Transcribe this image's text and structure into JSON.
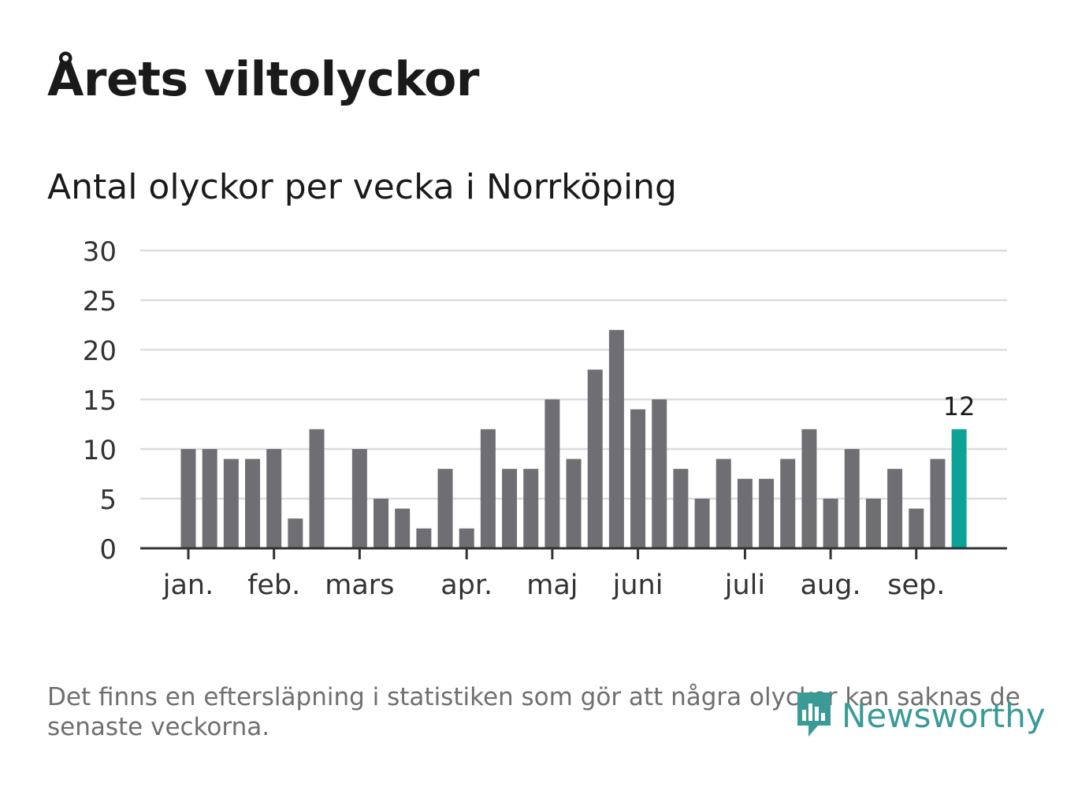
{
  "title": "Årets viltolyckor",
  "subtitle": "Antal olyckor per vecka i Norrköping",
  "footnote": "Det finns en eftersläpning i statistiken som gör att några olyckor kan saknas de senaste veckorna.",
  "logo": {
    "text": "Newsworthy",
    "icon": "bar-chart-pin-icon"
  },
  "colors": {
    "bar": "#6f6e73",
    "highlight": "#0aa396",
    "grid": "#dddddd",
    "axis": "#333333",
    "logo": "#3a9b96"
  },
  "chart_data": {
    "type": "bar",
    "title": "Årets viltolyckor",
    "subtitle": "Antal olyckor per vecka i Norrköping",
    "ylim": [
      0,
      30
    ],
    "yticks": [
      0,
      5,
      10,
      15,
      20,
      25,
      30
    ],
    "grid": true,
    "values": [
      10,
      10,
      9,
      9,
      10,
      3,
      12,
      0,
      10,
      5,
      4,
      2,
      8,
      2,
      12,
      8,
      8,
      15,
      9,
      18,
      22,
      14,
      15,
      8,
      5,
      9,
      7,
      7,
      9,
      12,
      5,
      10,
      5,
      8,
      4,
      9,
      12
    ],
    "highlight_index": 36,
    "highlight_label": "12",
    "month_labels": [
      {
        "label": "jan.",
        "week": 1
      },
      {
        "label": "feb.",
        "week": 5
      },
      {
        "label": "mars",
        "week": 9
      },
      {
        "label": "apr.",
        "week": 14
      },
      {
        "label": "maj",
        "week": 18
      },
      {
        "label": "juni",
        "week": 22
      },
      {
        "label": "juli",
        "week": 27
      },
      {
        "label": "aug.",
        "week": 31
      },
      {
        "label": "sep.",
        "week": 35
      }
    ]
  }
}
